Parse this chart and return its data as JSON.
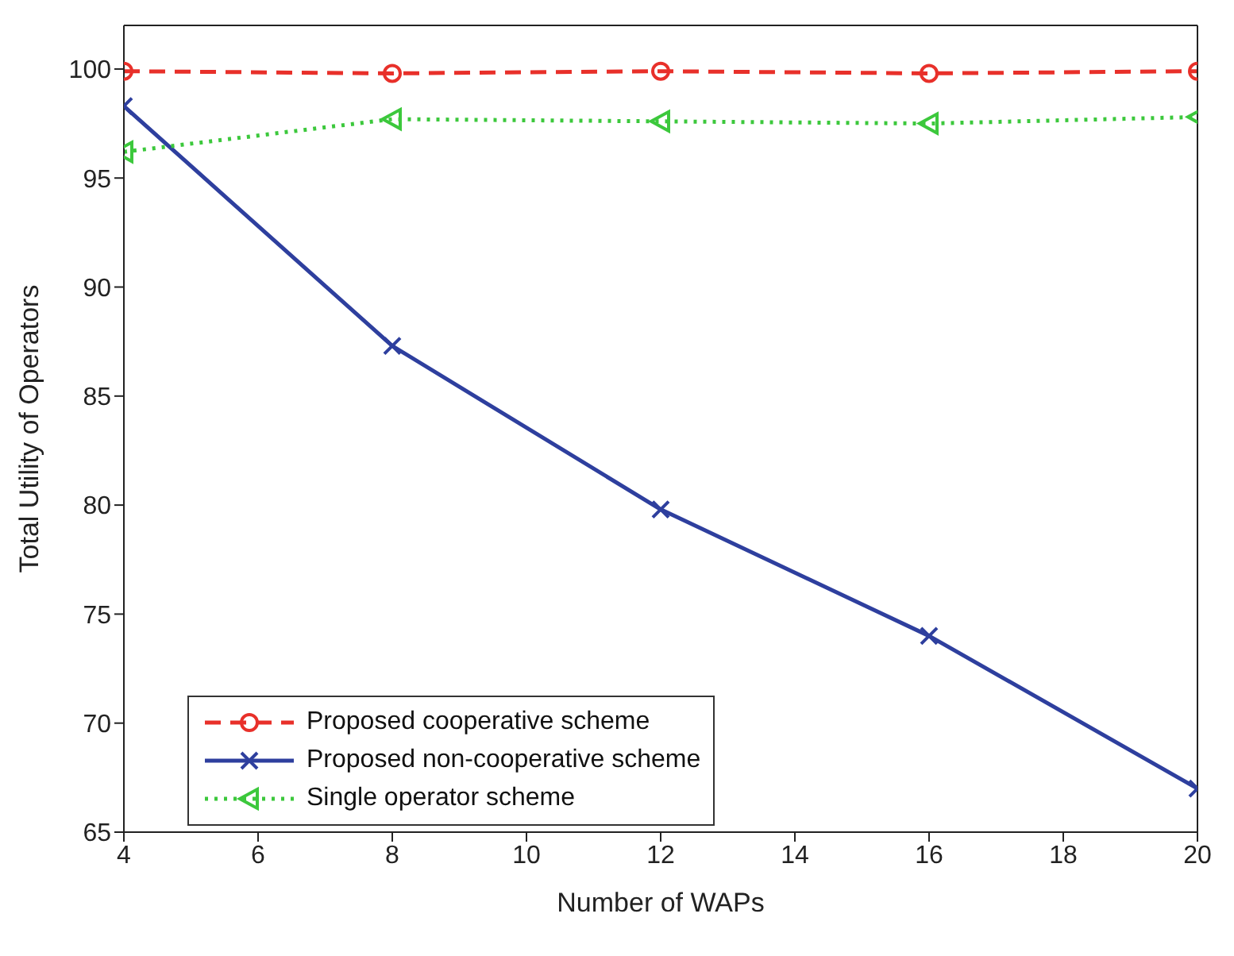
{
  "chart_data": {
    "type": "line",
    "xlabel": "Number of WAPs",
    "ylabel": "Total Utility of Operators",
    "x": [
      4,
      8,
      12,
      16,
      20
    ],
    "xlim": [
      4,
      20
    ],
    "xticks": [
      4,
      6,
      8,
      10,
      12,
      14,
      16,
      18,
      20
    ],
    "ylim": [
      65,
      102
    ],
    "yticks": [
      65,
      70,
      75,
      80,
      85,
      90,
      95,
      100
    ],
    "grid": false,
    "legend": "bottom left",
    "series": [
      {
        "name": "Proposed cooperative scheme",
        "color": "#e8302a",
        "marker": "circle",
        "line_style": "dashed",
        "values": [
          99.9,
          99.8,
          99.9,
          99.8,
          99.9
        ]
      },
      {
        "name": "Proposed non-cooperative scheme",
        "color": "#2e3f9e",
        "marker": "cross",
        "line_style": "solid",
        "values": [
          98.3,
          87.3,
          79.8,
          74.0,
          67.0
        ]
      },
      {
        "name": "Single operator scheme",
        "color": "#3cc83c",
        "marker": "triangle",
        "line_style": "dotted",
        "values": [
          96.2,
          97.7,
          97.6,
          97.5,
          97.8
        ]
      }
    ]
  }
}
